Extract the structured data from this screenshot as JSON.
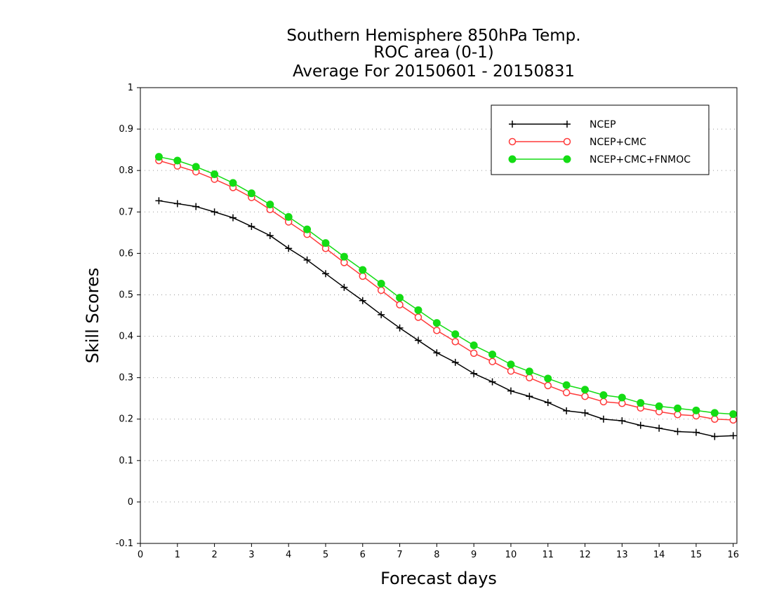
{
  "chart_data": {
    "type": "line",
    "title": [
      "Southern Hemisphere 850hPa Temp.",
      "ROC area (0-1)",
      "Average For 20150601 - 20150831"
    ],
    "xlabel": "Forecast days",
    "ylabel": "Skill Scores",
    "xlim": [
      0,
      16.1
    ],
    "ylim": [
      -0.1,
      1
    ],
    "xticks": [
      "0",
      "1",
      "2",
      "3",
      "4",
      "5",
      "6",
      "7",
      "8",
      "9",
      "10",
      "11",
      "12",
      "13",
      "14",
      "15",
      "16"
    ],
    "yticks": [
      "-0.1",
      "0",
      "0.1",
      "0.2",
      "0.3",
      "0.4",
      "0.5",
      "0.6",
      "0.7",
      "0.8",
      "0.9",
      "1"
    ],
    "grid": "horizontal dotted",
    "legend_position": "top-right",
    "x": [
      0.5,
      1,
      1.5,
      2,
      2.5,
      3,
      3.5,
      4,
      4.5,
      5,
      5.5,
      6,
      6.5,
      7,
      7.5,
      8,
      8.5,
      9,
      9.5,
      10,
      10.5,
      11,
      11.5,
      12,
      12.5,
      13,
      13.5,
      14,
      14.5,
      15,
      15.5,
      16
    ],
    "series": [
      {
        "name": "NCEP",
        "color": "#000000",
        "marker": "plus",
        "values": [
          0.727,
          0.72,
          0.713,
          0.7,
          0.686,
          0.665,
          0.643,
          0.612,
          0.584,
          0.551,
          0.518,
          0.486,
          0.452,
          0.42,
          0.39,
          0.36,
          0.337,
          0.31,
          0.29,
          0.268,
          0.255,
          0.24,
          0.22,
          0.215,
          0.2,
          0.196,
          0.185,
          0.178,
          0.17,
          0.168,
          0.158,
          0.16
        ]
      },
      {
        "name": "NCEP+CMC",
        "color": "#ff3a3a",
        "marker": "open-circle",
        "values": [
          0.824,
          0.811,
          0.797,
          0.779,
          0.759,
          0.735,
          0.706,
          0.676,
          0.646,
          0.612,
          0.578,
          0.545,
          0.511,
          0.476,
          0.446,
          0.414,
          0.387,
          0.359,
          0.339,
          0.316,
          0.3,
          0.281,
          0.264,
          0.255,
          0.242,
          0.238,
          0.227,
          0.218,
          0.211,
          0.208,
          0.2,
          0.198
        ]
      },
      {
        "name": "NCEP+CMC+FNMOC",
        "color": "#14dc14",
        "marker": "filled-circle",
        "values": [
          0.833,
          0.824,
          0.809,
          0.791,
          0.77,
          0.745,
          0.718,
          0.688,
          0.658,
          0.625,
          0.592,
          0.56,
          0.527,
          0.493,
          0.463,
          0.432,
          0.405,
          0.378,
          0.356,
          0.332,
          0.315,
          0.298,
          0.282,
          0.271,
          0.258,
          0.252,
          0.239,
          0.231,
          0.226,
          0.221,
          0.215,
          0.212
        ]
      }
    ]
  }
}
